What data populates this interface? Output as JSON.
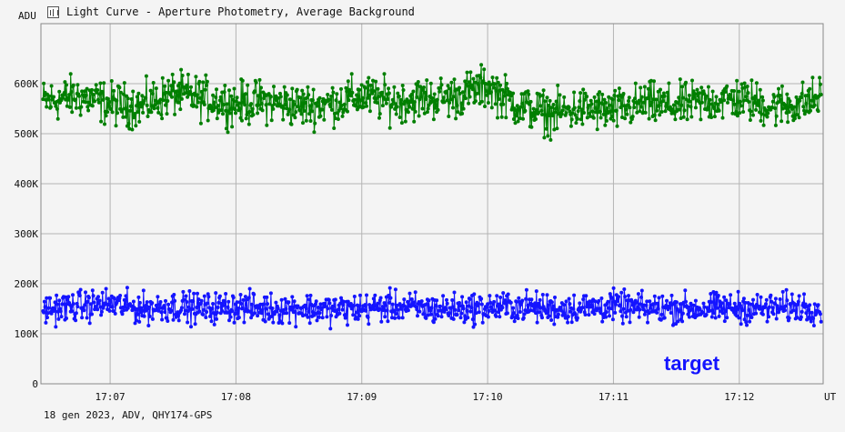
{
  "window": {
    "title": "Light Curve - Aperture Photometry, Average Background",
    "icon": "chart-icon"
  },
  "footer": {
    "text": "18 gen 2023, ADV, QHY174-GPS"
  },
  "chart_data": {
    "type": "line",
    "title": "Light Curve - Aperture Photometry, Average Background",
    "ylabel": "ADU",
    "xlabel": "UT",
    "xlim": [
      "17:06:27",
      "17:12:40"
    ],
    "ylim": [
      0,
      720000
    ],
    "y_ticks": [
      {
        "value": 0,
        "label": "0"
      },
      {
        "value": 100000,
        "label": "100K"
      },
      {
        "value": 200000,
        "label": "200K"
      },
      {
        "value": 300000,
        "label": "300K"
      },
      {
        "value": 400000,
        "label": "400K"
      },
      {
        "value": 500000,
        "label": "500K"
      },
      {
        "value": 600000,
        "label": "600K"
      }
    ],
    "x_ticks": [
      {
        "value": "17:07:00",
        "label": "17:07"
      },
      {
        "value": "17:08:00",
        "label": "17:08"
      },
      {
        "value": "17:09:00",
        "label": "17:09"
      },
      {
        "value": "17:10:00",
        "label": "17:10"
      },
      {
        "value": "17:11:00",
        "label": "17:11"
      },
      {
        "value": "17:12:00",
        "label": "17:12"
      }
    ],
    "grid": true,
    "series": [
      {
        "name": "",
        "color": "#007f00",
        "x": [
          "17:06:30",
          "17:06:45",
          "17:07:00",
          "17:07:15",
          "17:07:30",
          "17:07:45",
          "17:08:00",
          "17:08:15",
          "17:08:30",
          "17:08:45",
          "17:09:00",
          "17:09:15",
          "17:09:30",
          "17:09:45",
          "17:10:00",
          "17:10:15",
          "17:10:30",
          "17:10:45",
          "17:11:00",
          "17:11:15",
          "17:11:30",
          "17:11:45",
          "17:12:00",
          "17:12:15",
          "17:12:30",
          "17:12:40"
        ],
        "values": [
          565000,
          575000,
          560000,
          555000,
          580000,
          570000,
          560000,
          565000,
          555000,
          560000,
          575000,
          565000,
          570000,
          575000,
          595000,
          555000,
          540000,
          550000,
          545000,
          560000,
          555000,
          565000,
          570000,
          555000,
          560000,
          575000
        ],
        "spread": 45000
      },
      {
        "name": "target",
        "color": "#1414ff",
        "x": [
          "17:06:30",
          "17:06:45",
          "17:07:00",
          "17:07:15",
          "17:07:30",
          "17:07:45",
          "17:08:00",
          "17:08:15",
          "17:08:30",
          "17:08:45",
          "17:09:00",
          "17:09:15",
          "17:09:30",
          "17:09:45",
          "17:10:00",
          "17:10:15",
          "17:10:30",
          "17:10:45",
          "17:11:00",
          "17:11:15",
          "17:11:30",
          "17:11:45",
          "17:12:00",
          "17:12:15",
          "17:12:30",
          "17:12:40"
        ],
        "values": [
          150000,
          155000,
          160000,
          150000,
          155000,
          150000,
          155000,
          150000,
          152000,
          148000,
          150000,
          155000,
          150000,
          150000,
          152000,
          155000,
          150000,
          152000,
          155000,
          150000,
          152000,
          150000,
          152000,
          150000,
          155000,
          150000
        ],
        "spread": 32000
      }
    ]
  }
}
